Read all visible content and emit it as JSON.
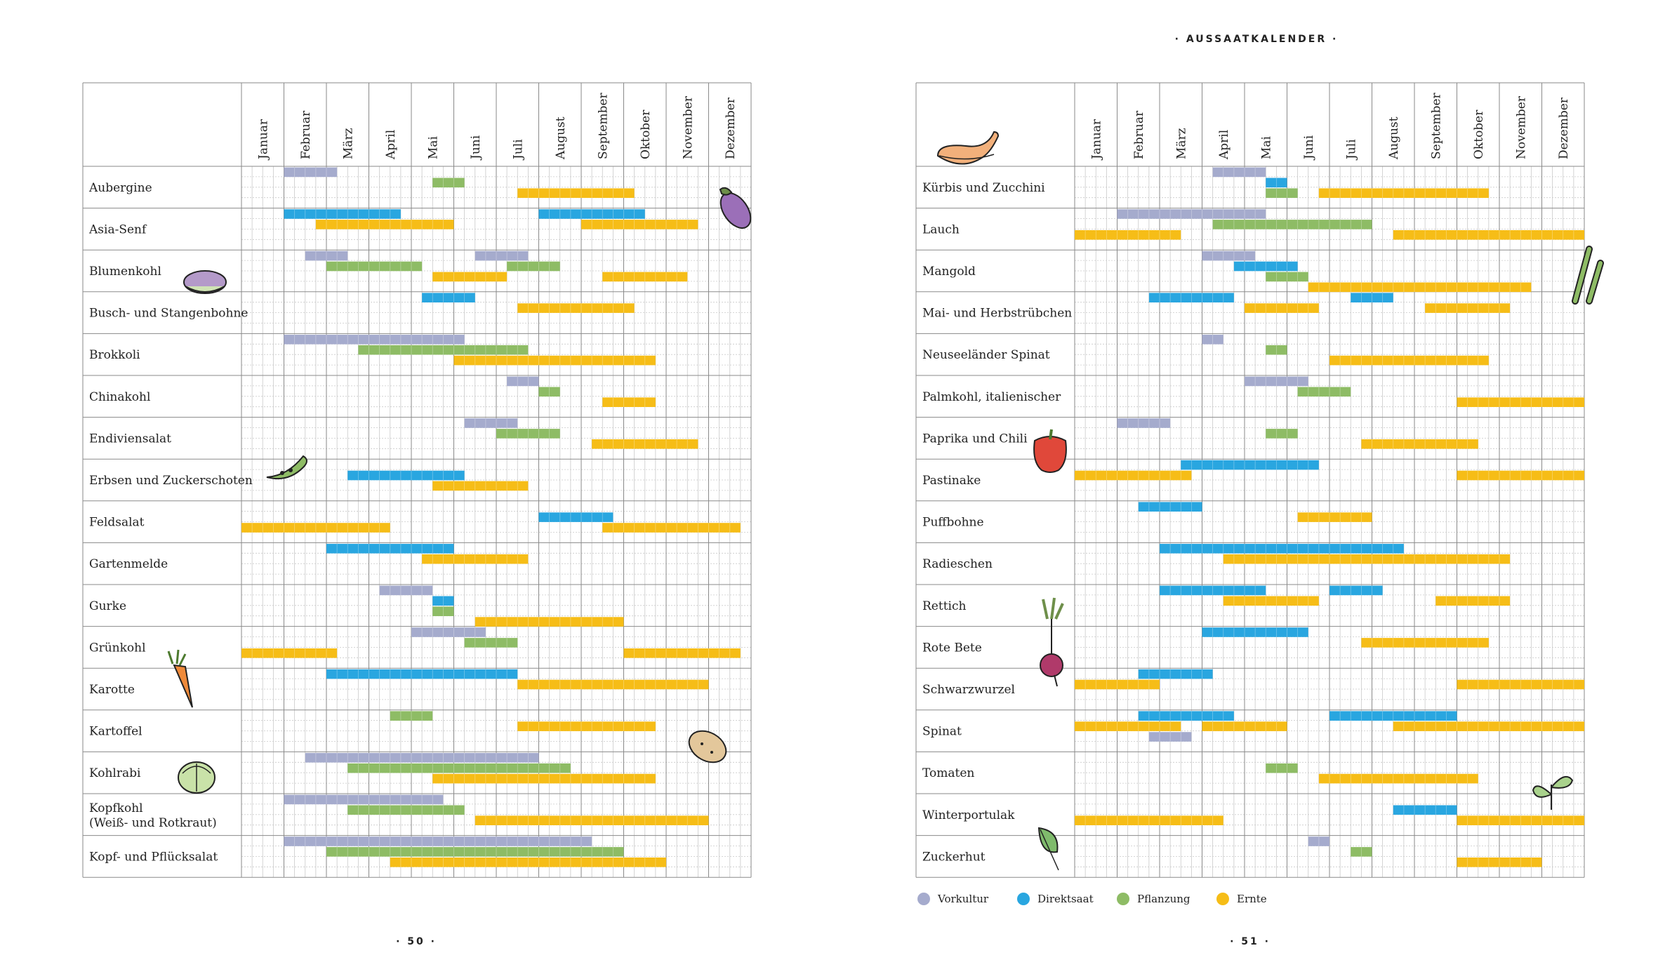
{
  "header": {
    "title": "· AUSSAATKALENDER ·"
  },
  "pages": {
    "left_number": "· 50 ·",
    "right_number": "· 51 ·"
  },
  "colors": {
    "Vorkultur": "#a5abcd",
    "Direktsaat": "#29a6e0",
    "Pflanzung": "#8ebc65",
    "Ernte": "#f6bd17"
  },
  "chart_data": [
    {
      "type": "gantt",
      "title": "Aussaatkalender (Seite 50)",
      "x_unit": "Monat (Halbmonatsschritte 0–12)",
      "months": [
        "Januar",
        "Februar",
        "März",
        "April",
        "Mai",
        "Juni",
        "Juli",
        "August",
        "September",
        "Oktober",
        "November",
        "Dezember"
      ],
      "rows": [
        {
          "name": "Aubergine",
          "icon": "eggplant-icon",
          "bars": [
            {
              "t": "Vorkultur",
              "lane": 0,
              "s": 1,
              "e": 2.25
            },
            {
              "t": "Pflanzung",
              "lane": 1,
              "s": 4.5,
              "e": 5.25
            },
            {
              "t": "Ernte",
              "lane": 2,
              "s": 6.5,
              "e": 9.25
            }
          ]
        },
        {
          "name": "Asia-Senf",
          "bars": [
            {
              "t": "Direktsaat",
              "lane": 0,
              "s": 1,
              "e": 3.75
            },
            {
              "t": "Direktsaat",
              "lane": 0,
              "s": 7,
              "e": 9.5
            },
            {
              "t": "Ernte",
              "lane": 1,
              "s": 1.75,
              "e": 5
            },
            {
              "t": "Ernte",
              "lane": 1,
              "s": 8,
              "e": 10.75
            }
          ]
        },
        {
          "name": "Blumenkohl",
          "icon": "cauliflower-icon",
          "bars": [
            {
              "t": "Vorkultur",
              "lane": 0,
              "s": 1.5,
              "e": 2.5
            },
            {
              "t": "Vorkultur",
              "lane": 0,
              "s": 5.5,
              "e": 6.75
            },
            {
              "t": "Pflanzung",
              "lane": 1,
              "s": 2,
              "e": 4.25
            },
            {
              "t": "Pflanzung",
              "lane": 1,
              "s": 6.25,
              "e": 7.5
            },
            {
              "t": "Ernte",
              "lane": 2,
              "s": 4.5,
              "e": 6.25
            },
            {
              "t": "Ernte",
              "lane": 2,
              "s": 8.5,
              "e": 10.5
            }
          ]
        },
        {
          "name": "Busch- und Stangenbohne",
          "bars": [
            {
              "t": "Direktsaat",
              "lane": 0,
              "s": 4.25,
              "e": 5.5
            },
            {
              "t": "Ernte",
              "lane": 1,
              "s": 6.5,
              "e": 9.25
            }
          ]
        },
        {
          "name": "Brokkoli",
          "bars": [
            {
              "t": "Vorkultur",
              "lane": 0,
              "s": 1,
              "e": 5.25
            },
            {
              "t": "Pflanzung",
              "lane": 1,
              "s": 2.75,
              "e": 6.75
            },
            {
              "t": "Ernte",
              "lane": 2,
              "s": 5,
              "e": 9.75
            }
          ]
        },
        {
          "name": "Chinakohl",
          "bars": [
            {
              "t": "Vorkultur",
              "lane": 0,
              "s": 6.25,
              "e": 7
            },
            {
              "t": "Pflanzung",
              "lane": 1,
              "s": 7,
              "e": 7.5
            },
            {
              "t": "Ernte",
              "lane": 2,
              "s": 8.5,
              "e": 9.75
            }
          ]
        },
        {
          "name": "Endiviensalat",
          "bars": [
            {
              "t": "Vorkultur",
              "lane": 0,
              "s": 5.25,
              "e": 6.5
            },
            {
              "t": "Pflanzung",
              "lane": 1,
              "s": 6,
              "e": 7.5
            },
            {
              "t": "Ernte",
              "lane": 2,
              "s": 8.25,
              "e": 10.75
            }
          ]
        },
        {
          "name": "Erbsen und Zuckerschoten",
          "icon": "peapod-icon",
          "bars": [
            {
              "t": "Direktsaat",
              "lane": 1,
              "s": 2.5,
              "e": 5.25
            },
            {
              "t": "Ernte",
              "lane": 2,
              "s": 4.5,
              "e": 6.75
            }
          ]
        },
        {
          "name": "Feldsalat",
          "bars": [
            {
              "t": "Direktsaat",
              "lane": 1,
              "s": 7,
              "e": 8.75
            },
            {
              "t": "Ernte",
              "lane": 2,
              "s": 0,
              "e": 3.5
            },
            {
              "t": "Ernte",
              "lane": 2,
              "s": 8.5,
              "e": 11.75
            }
          ]
        },
        {
          "name": "Gartenmelde",
          "bars": [
            {
              "t": "Direktsaat",
              "lane": 0,
              "s": 2,
              "e": 5
            },
            {
              "t": "Ernte",
              "lane": 1,
              "s": 4.25,
              "e": 6.75
            }
          ]
        },
        {
          "name": "Gurke",
          "bars": [
            {
              "t": "Vorkultur",
              "lane": 0,
              "s": 3.25,
              "e": 4.5
            },
            {
              "t": "Direktsaat",
              "lane": 1,
              "s": 4.5,
              "e": 5
            },
            {
              "t": "Pflanzung",
              "lane": 2,
              "s": 4.5,
              "e": 5
            },
            {
              "t": "Ernte",
              "lane": 3,
              "s": 5.5,
              "e": 9
            }
          ]
        },
        {
          "name": "Grünkohl",
          "bars": [
            {
              "t": "Vorkultur",
              "lane": 0,
              "s": 4,
              "e": 5.75
            },
            {
              "t": "Pflanzung",
              "lane": 1,
              "s": 5.25,
              "e": 6.5
            },
            {
              "t": "Ernte",
              "lane": 2,
              "s": 0,
              "e": 2.25
            },
            {
              "t": "Ernte",
              "lane": 2,
              "s": 9,
              "e": 11.75
            }
          ]
        },
        {
          "name": "Karotte",
          "icon": "carrot-icon",
          "bars": [
            {
              "t": "Direktsaat",
              "lane": 0,
              "s": 2,
              "e": 6.5
            },
            {
              "t": "Ernte",
              "lane": 1,
              "s": 6.5,
              "e": 11
            }
          ]
        },
        {
          "name": "Kartoffel",
          "icon": "potato-icon",
          "bars": [
            {
              "t": "Pflanzung",
              "lane": 0,
              "s": 3.5,
              "e": 4.5
            },
            {
              "t": "Ernte",
              "lane": 1,
              "s": 6.5,
              "e": 9.75
            }
          ]
        },
        {
          "name": "Kohlrabi",
          "icon": "kohlrabi-icon",
          "bars": [
            {
              "t": "Vorkultur",
              "lane": 0,
              "s": 1.5,
              "e": 7
            },
            {
              "t": "Pflanzung",
              "lane": 1,
              "s": 2.5,
              "e": 7.75
            },
            {
              "t": "Ernte",
              "lane": 2,
              "s": 4.5,
              "e": 9.75
            }
          ]
        },
        {
          "name": "Kopfkohl (Weiß- und Rotkraut)",
          "lines": [
            "Kopfkohl",
            "(Weiß- und Rotkraut)"
          ],
          "bars": [
            {
              "t": "Vorkultur",
              "lane": 0,
              "s": 1,
              "e": 4.75
            },
            {
              "t": "Pflanzung",
              "lane": 1,
              "s": 2.5,
              "e": 5.25
            },
            {
              "t": "Ernte",
              "lane": 2,
              "s": 5.5,
              "e": 11
            }
          ]
        },
        {
          "name": "Kopf- und Pflücksalat",
          "bars": [
            {
              "t": "Vorkultur",
              "lane": 0,
              "s": 1,
              "e": 8.25
            },
            {
              "t": "Pflanzung",
              "lane": 1,
              "s": 2,
              "e": 9
            },
            {
              "t": "Ernte",
              "lane": 2,
              "s": 3.5,
              "e": 10
            }
          ]
        }
      ]
    },
    {
      "type": "gantt",
      "title": "Aussaatkalender (Seite 51)",
      "x_unit": "Monat (Halbmonatsschritte 0–12)",
      "months": [
        "Januar",
        "Februar",
        "März",
        "April",
        "Mai",
        "Juni",
        "Juli",
        "August",
        "September",
        "Oktober",
        "November",
        "Dezember"
      ],
      "rows": [
        {
          "name": "Kürbis und Zucchini",
          "icon": "squash-icon",
          "bars": [
            {
              "t": "Vorkultur",
              "lane": 0,
              "s": 3.25,
              "e": 4.5
            },
            {
              "t": "Direktsaat",
              "lane": 1,
              "s": 4.5,
              "e": 5
            },
            {
              "t": "Pflanzung",
              "lane": 2,
              "s": 4.5,
              "e": 5.25
            },
            {
              "t": "Ernte",
              "lane": 2,
              "s": 5.75,
              "e": 9.75
            }
          ]
        },
        {
          "name": "Lauch",
          "icon": "leek-icon",
          "bars": [
            {
              "t": "Vorkultur",
              "lane": 0,
              "s": 1,
              "e": 4.5
            },
            {
              "t": "Pflanzung",
              "lane": 1,
              "s": 3.25,
              "e": 7
            },
            {
              "t": "Ernte",
              "lane": 2,
              "s": 0,
              "e": 2.5
            },
            {
              "t": "Ernte",
              "lane": 2,
              "s": 7.5,
              "e": 12
            }
          ]
        },
        {
          "name": "Mangold",
          "bars": [
            {
              "t": "Vorkultur",
              "lane": 0,
              "s": 3,
              "e": 4.25
            },
            {
              "t": "Direktsaat",
              "lane": 1,
              "s": 3.75,
              "e": 5.25
            },
            {
              "t": "Pflanzung",
              "lane": 2,
              "s": 4.5,
              "e": 5.5
            },
            {
              "t": "Ernte",
              "lane": 3,
              "s": 5.5,
              "e": 10.75
            }
          ]
        },
        {
          "name": "Mai- und Herbstrübchen",
          "bars": [
            {
              "t": "Direktsaat",
              "lane": 0,
              "s": 1.75,
              "e": 3.75
            },
            {
              "t": "Direktsaat",
              "lane": 0,
              "s": 6.5,
              "e": 7.5
            },
            {
              "t": "Ernte",
              "lane": 1,
              "s": 4,
              "e": 5.75
            },
            {
              "t": "Ernte",
              "lane": 1,
              "s": 8.25,
              "e": 10.25
            }
          ]
        },
        {
          "name": "Neuseeländer Spinat",
          "bars": [
            {
              "t": "Vorkultur",
              "lane": 0,
              "s": 3,
              "e": 3.5
            },
            {
              "t": "Pflanzung",
              "lane": 1,
              "s": 4.5,
              "e": 5
            },
            {
              "t": "Ernte",
              "lane": 2,
              "s": 6,
              "e": 9.75
            }
          ]
        },
        {
          "name": "Palmkohl, italienischer",
          "bars": [
            {
              "t": "Vorkultur",
              "lane": 0,
              "s": 4,
              "e": 5.5
            },
            {
              "t": "Pflanzung",
              "lane": 1,
              "s": 5.25,
              "e": 6.5
            },
            {
              "t": "Ernte",
              "lane": 2,
              "s": 9,
              "e": 12
            }
          ]
        },
        {
          "name": "Paprika und Chili",
          "icon": "pepper-icon",
          "bars": [
            {
              "t": "Vorkultur",
              "lane": 0,
              "s": 1,
              "e": 2.25
            },
            {
              "t": "Pflanzung",
              "lane": 1,
              "s": 4.5,
              "e": 5.25
            },
            {
              "t": "Ernte",
              "lane": 2,
              "s": 6.75,
              "e": 9.5
            }
          ]
        },
        {
          "name": "Pastinake",
          "bars": [
            {
              "t": "Direktsaat",
              "lane": 0,
              "s": 2.5,
              "e": 5.75
            },
            {
              "t": "Ernte",
              "lane": 1,
              "s": 0,
              "e": 2.75
            },
            {
              "t": "Ernte",
              "lane": 1,
              "s": 9,
              "e": 12
            }
          ]
        },
        {
          "name": "Puffbohne",
          "bars": [
            {
              "t": "Direktsaat",
              "lane": 0,
              "s": 1.5,
              "e": 3
            },
            {
              "t": "Ernte",
              "lane": 1,
              "s": 5.25,
              "e": 7
            }
          ]
        },
        {
          "name": "Radieschen",
          "bars": [
            {
              "t": "Direktsaat",
              "lane": 0,
              "s": 2,
              "e": 7.75
            },
            {
              "t": "Ernte",
              "lane": 1,
              "s": 3.5,
              "e": 10.25
            }
          ]
        },
        {
          "name": "Rettich",
          "bars": [
            {
              "t": "Direktsaat",
              "lane": 0,
              "s": 2,
              "e": 4.5
            },
            {
              "t": "Direktsaat",
              "lane": 0,
              "s": 6,
              "e": 7.25
            },
            {
              "t": "Ernte",
              "lane": 1,
              "s": 3.5,
              "e": 5.75
            },
            {
              "t": "Ernte",
              "lane": 1,
              "s": 8.5,
              "e": 10.25
            }
          ]
        },
        {
          "name": "Rote Bete",
          "icon": "beet-icon",
          "bars": [
            {
              "t": "Direktsaat",
              "lane": 0,
              "s": 3,
              "e": 5.5
            },
            {
              "t": "Ernte",
              "lane": 1,
              "s": 6.75,
              "e": 9.75
            }
          ]
        },
        {
          "name": "Schwarzwurzel",
          "bars": [
            {
              "t": "Direktsaat",
              "lane": 0,
              "s": 1.5,
              "e": 3.25
            },
            {
              "t": "Ernte",
              "lane": 1,
              "s": 0,
              "e": 2
            },
            {
              "t": "Ernte",
              "lane": 1,
              "s": 9,
              "e": 12
            }
          ]
        },
        {
          "name": "Spinat",
          "bars": [
            {
              "t": "Direktsaat",
              "lane": 0,
              "s": 1.5,
              "e": 3.75
            },
            {
              "t": "Direktsaat",
              "lane": 0,
              "s": 6,
              "e": 9
            },
            {
              "t": "Ernte",
              "lane": 1,
              "s": 0,
              "e": 2.5
            },
            {
              "t": "Ernte",
              "lane": 1,
              "s": 3,
              "e": 5
            },
            {
              "t": "Ernte",
              "lane": 1,
              "s": 7.5,
              "e": 12
            },
            {
              "t": "Vorkultur",
              "lane": 2,
              "s": 1.75,
              "e": 2.75
            }
          ]
        },
        {
          "name": "Tomaten",
          "icon": "herb-icon",
          "bars": [
            {
              "t": "Pflanzung",
              "lane": 1,
              "s": 4.5,
              "e": 5.25
            },
            {
              "t": "Ernte",
              "lane": 2,
              "s": 5.75,
              "e": 9.5
            }
          ]
        },
        {
          "name": "Winterportulak",
          "icon": "leaf-icon",
          "bars": [
            {
              "t": "Direktsaat",
              "lane": 1,
              "s": 7.5,
              "e": 9
            },
            {
              "t": "Ernte",
              "lane": 2,
              "s": 0,
              "e": 3.5
            },
            {
              "t": "Ernte",
              "lane": 2,
              "s": 9,
              "e": 12
            }
          ]
        },
        {
          "name": "Zuckerhut",
          "bars": [
            {
              "t": "Vorkultur",
              "lane": 0,
              "s": 5.5,
              "e": 6
            },
            {
              "t": "Pflanzung",
              "lane": 1,
              "s": 6.5,
              "e": 7
            },
            {
              "t": "Ernte",
              "lane": 2,
              "s": 9,
              "e": 11
            }
          ]
        }
      ]
    }
  ],
  "legend": [
    {
      "label": "Vorkultur",
      "key": "Vorkultur"
    },
    {
      "label": "Direktsaat",
      "key": "Direktsaat"
    },
    {
      "label": "Pflanzung",
      "key": "Pflanzung"
    },
    {
      "label": "Ernte",
      "key": "Ernte"
    }
  ]
}
